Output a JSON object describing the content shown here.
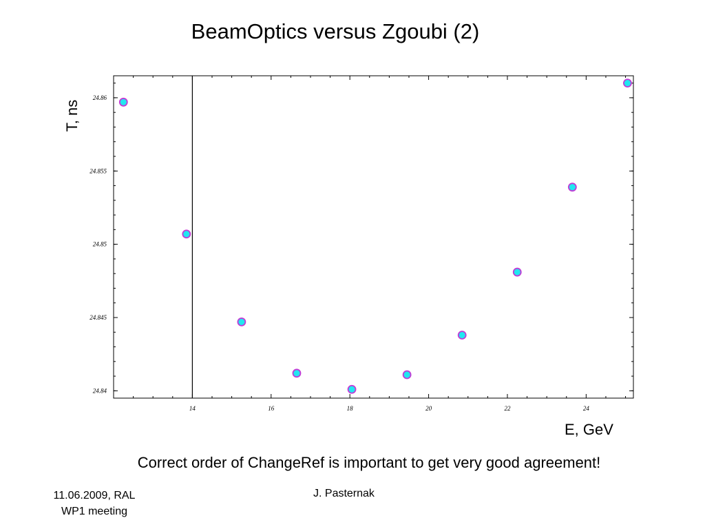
{
  "slide": {
    "title": "BeamOptics versus Zgoubi (2)",
    "note": "Correct order of ChangeRef is important to get very good agreement!",
    "footer_left_line1": "11.06.2009, RAL",
    "footer_left_line2": "WP1 meeting",
    "footer_center": "J. Pasternak"
  },
  "chart_data": {
    "type": "scatter",
    "title": "BeamOptics versus Zgoubi (2)",
    "xlabel": "E, GeV",
    "ylabel": "T, ns",
    "xlim": [
      12,
      25.2
    ],
    "ylim": [
      24.8395,
      24.8615
    ],
    "x_ticks": [
      14,
      16,
      18,
      20,
      22,
      24
    ],
    "y_ticks": [
      24.84,
      24.845,
      24.85,
      24.855,
      24.86
    ],
    "x_tick_labels": [
      "14",
      "16",
      "18",
      "20",
      "22",
      "24"
    ],
    "y_tick_labels": [
      "24.84",
      "24.845",
      "24.85",
      "24.855",
      "24.86"
    ],
    "vertical_line_x": 14,
    "grid": false,
    "colors": {
      "marker_fill": "#22e6f0",
      "marker_edge": "#c23ad6",
      "axis": "#000000"
    },
    "series": [
      {
        "x": [
          12.25,
          13.85,
          15.25,
          16.65,
          18.05,
          19.45,
          20.85,
          22.25,
          23.65,
          25.05
        ],
        "y": [
          24.8597,
          24.8507,
          24.8447,
          24.8412,
          24.8401,
          24.8411,
          24.8438,
          24.8481,
          24.8539,
          24.861
        ]
      }
    ]
  }
}
